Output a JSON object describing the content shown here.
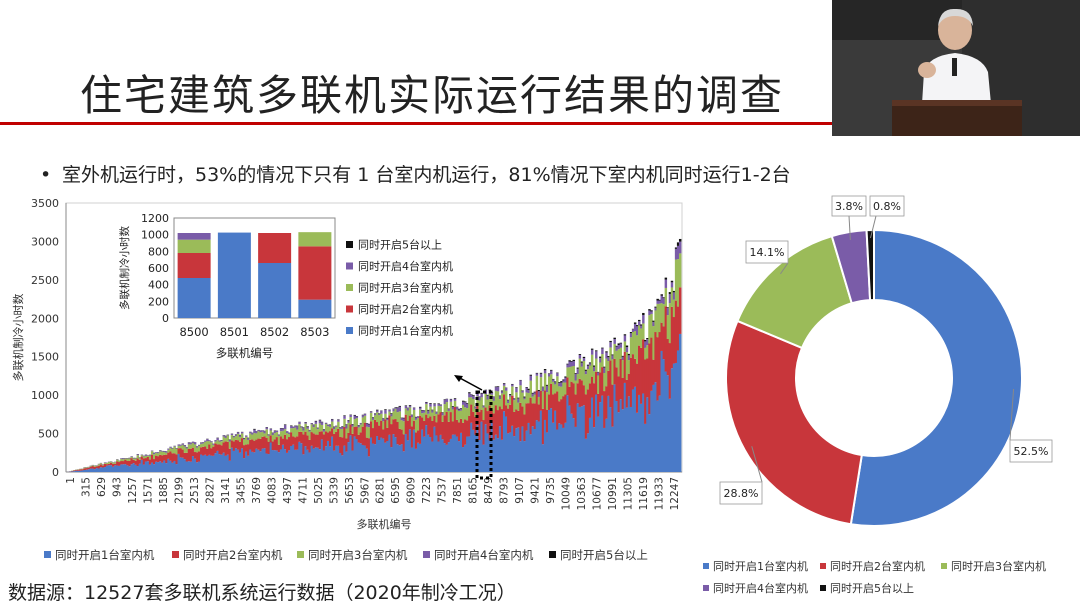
{
  "slide": {
    "title": "住宅建筑多联机实际运行结果的调查",
    "bullet": "室外机运行时，53%的情况下只有 1 台室内机运行，81%情况下室内机同时运行1-2台",
    "source": "数据源：12527套多联机系统运行数据（2020年制冷工况）"
  },
  "colors": {
    "s1": "#4a7ac8",
    "s2": "#c8363b",
    "s3": "#9bbb59",
    "s4": "#7a5ca8",
    "s5": "#111111",
    "title_rule": "#c00000"
  },
  "legend_labels": [
    "同时开启1台室内机",
    "同时开启2台室内机",
    "同时开启3台室内机",
    "同时开启4台室内机",
    "同时开启5台以上"
  ],
  "chart_data": [
    {
      "type": "bar",
      "stacked": true,
      "ylabel": "多联机制冷小时数",
      "xlabel": "多联机编号",
      "ylim": [
        0,
        3500
      ],
      "yticks": [
        0,
        500,
        1000,
        1500,
        2000,
        2500,
        3000,
        3500
      ],
      "xtick_labels": [
        "1",
        "315",
        "629",
        "943",
        "1257",
        "1571",
        "1885",
        "2199",
        "2513",
        "2827",
        "3141",
        "3455",
        "3769",
        "4083",
        "4397",
        "4711",
        "5025",
        "5339",
        "5653",
        "5967",
        "6281",
        "6595",
        "6909",
        "7223",
        "7537",
        "7851",
        "8165",
        "8479",
        "8793",
        "9107",
        "9421",
        "9735",
        "10049",
        "10363",
        "10677",
        "10991",
        "11305",
        "11619",
        "11933",
        "12247"
      ],
      "n_units": 12527,
      "approx_total_hours_by_unit_percentile": [
        [
          0,
          0
        ],
        [
          0.05,
          100
        ],
        [
          0.25,
          440
        ],
        [
          0.5,
          720
        ],
        [
          0.65,
          920
        ],
        [
          0.75,
          1120
        ],
        [
          0.85,
          1420
        ],
        [
          0.92,
          1700
        ],
        [
          0.97,
          2150
        ],
        [
          1.0,
          2900
        ]
      ],
      "approx_series_share": [
        0.525,
        0.288,
        0.141,
        0.038,
        0.008
      ],
      "legend": "bottom",
      "annotation": "dotted box around units 8500-8503"
    },
    {
      "type": "bar",
      "stacked": true,
      "ylabel": "多联机制冷小时数",
      "xlabel": "多联机编号",
      "ylim": [
        0,
        1200
      ],
      "yticks": [
        0,
        200,
        400,
        600,
        800,
        1000,
        1200
      ],
      "categories": [
        "8500",
        "8501",
        "8502",
        "8503"
      ],
      "series": [
        {
          "name": "同时开启1台室内机",
          "values": [
            480,
            1025,
            660,
            220
          ]
        },
        {
          "name": "同时开启2台室内机",
          "values": [
            300,
            0,
            360,
            640
          ]
        },
        {
          "name": "同时开启3台室内机",
          "values": [
            160,
            0,
            0,
            170
          ]
        },
        {
          "name": "同时开启4台室内机",
          "values": [
            80,
            0,
            0,
            0
          ]
        },
        {
          "name": "同时开启5台以上",
          "values": [
            0,
            0,
            0,
            0
          ]
        }
      ],
      "legend": "right"
    },
    {
      "type": "pie",
      "donut": true,
      "labels": [
        "同时开启1台室内机",
        "同时开启2台室内机",
        "同时开启3台室内机",
        "同时开启4台室内机",
        "同时开启5台以上"
      ],
      "values": [
        52.5,
        28.8,
        14.1,
        3.8,
        0.8
      ],
      "value_labels": [
        "52.5%",
        "28.8%",
        "14.1%",
        "3.8%",
        "0.8%"
      ],
      "legend": "bottom"
    }
  ]
}
